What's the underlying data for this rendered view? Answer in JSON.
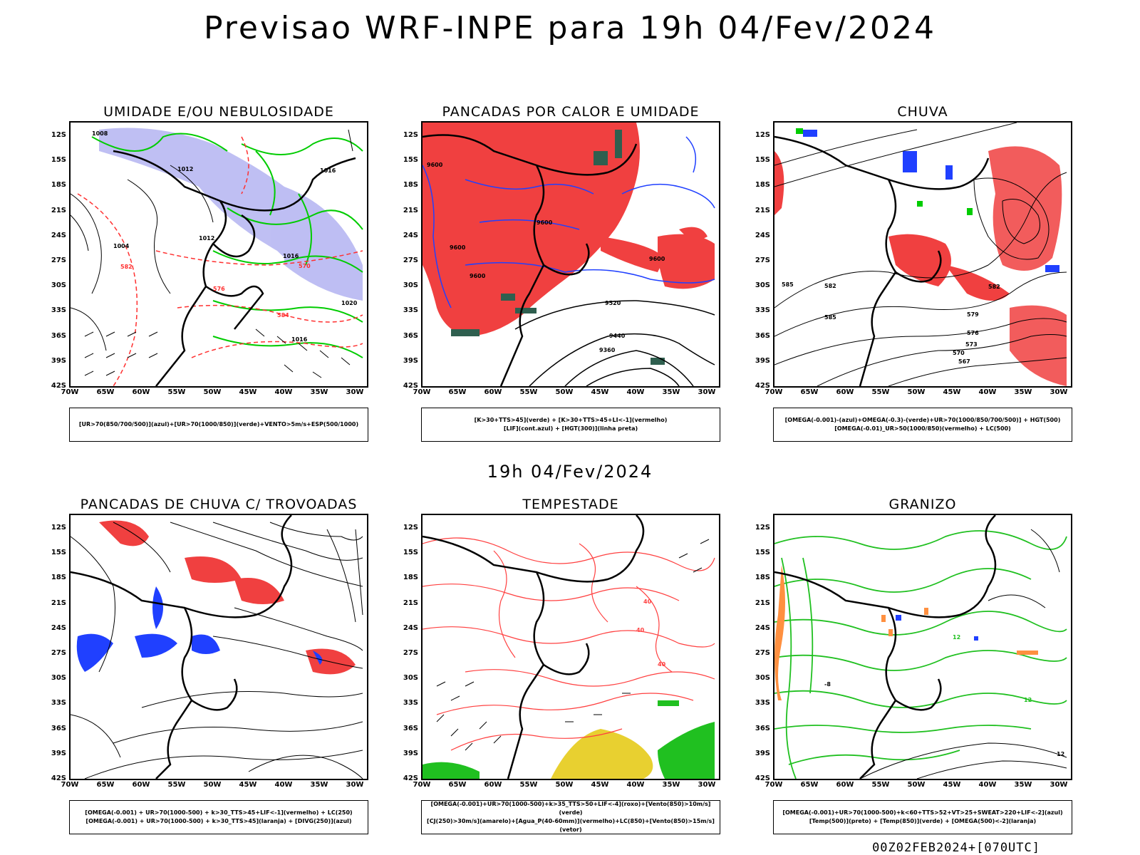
{
  "main_title": "Previsao WRF-INPE  para 19h 04/Fev/2024",
  "mid_title": "19h 04/Fev/2024",
  "footer": "00Z02FEB2024+[070UTC]",
  "axes": {
    "lat_labels": [
      "12S",
      "15S",
      "18S",
      "21S",
      "24S",
      "27S",
      "30S",
      "33S",
      "36S",
      "39S",
      "42S"
    ],
    "lon_labels": [
      "70W",
      "65W",
      "60W",
      "55W",
      "50W",
      "45W",
      "40W",
      "35W",
      "30W"
    ]
  },
  "panels": [
    {
      "id": "umidade",
      "title": "UMIDADE E/OU NEBULOSIDADE",
      "legend": [
        "[UR>70(850/700/500)](azul)+[UR>70(1000/850)](verde)+VENTO>5m/s+ESP(500/1000)"
      ],
      "contour_labels": [
        "1008",
        "1012",
        "1016",
        "1004",
        "1012",
        "1016",
        "1020",
        "576",
        "570",
        "582",
        "584",
        "1016"
      ],
      "colors": {
        "fill_primary": "#b0b0f0",
        "line_a": "#00cc00",
        "line_b": "#ff3030",
        "line_c": "#000000"
      }
    },
    {
      "id": "pancadas",
      "title": "PANCADAS POR CALOR E UMIDADE",
      "legend": [
        "[K>30+TTS>45](verde) + [K>30+TTS>45+LI<-1](vermelho)",
        "[LIF](cont.azul) + [HGT(300)](linha preta)"
      ],
      "contour_labels": [
        "9600",
        "9600",
        "9600",
        "9600",
        "9520",
        "9440",
        "9360",
        "9600"
      ],
      "colors": {
        "fill_primary": "#ff4040",
        "line_a": "#2040ff",
        "line_b": "#2f5f4f",
        "line_c": "#000000"
      }
    },
    {
      "id": "chuva",
      "title": "CHUVA",
      "legend": [
        "[OMEGA(-0.001)-(azul)+OMEGA(-0.3)-(verde)+UR>70(1000/850/700/500)] + HGT(500)",
        "[OMEGA(-0.01)_UR>50(1000/850)(vermelho) + LC(500)"
      ],
      "contour_labels": [
        "585",
        "582",
        "579",
        "576",
        "573",
        "570",
        "567",
        "585",
        "582"
      ],
      "colors": {
        "fill_primary": "#ff4040",
        "line_a": "#2040ff",
        "line_b": "#00cc00",
        "line_c": "#000000"
      }
    },
    {
      "id": "trovoadas",
      "title": "PANCADAS DE CHUVA C/ TROVOADAS",
      "legend": [
        "[OMEGA(-0.001) + UR>70(1000-500) + k>30_TTS>45+LIF<-1](vermelho) + LC(250)",
        "[OMEGA(-0.001) + UR>70(1000-500) + k>30_TTS>45](laranja) + [DIVG(250)](azul)"
      ],
      "contour_labels": [],
      "colors": {
        "fill_primary": "#ff4040",
        "line_a": "#2040ff",
        "line_b": "#ff8020",
        "line_c": "#000000"
      }
    },
    {
      "id": "tempestade",
      "title": "TEMPESTADE",
      "legend": [
        "[OMEGA(-0.001)+UR>70(1000-500)+k>35_TTS>50+LIF<-4](roxo)+[Vento(850)>10m/s](verde)",
        "[CJ(250)>30m/s](amarelo)+[Agua_P(40-60mm)](vermelho)+LC(850)+[Vento(850)>15m/s](vetor)"
      ],
      "contour_labels": [
        "40",
        "40",
        "40"
      ],
      "colors": {
        "fill_primary": "#e8d030",
        "line_a": "#ff4040",
        "line_b": "#20c020",
        "line_c": "#000000"
      }
    },
    {
      "id": "granizo",
      "title": "GRANIZO",
      "legend": [
        "[OMEGA(-0.001)+UR>70(1000-500)+k<60+TTS>52+VT>25+SWEAT>220+LIF<-2](azul)",
        "[Temp(500)](preto) + [Temp(850)](verde) + [OMEGA(500)<-2](laranja)"
      ],
      "contour_labels": [
        "12",
        "12",
        "-8",
        "12"
      ],
      "colors": {
        "fill_primary": "#ff9040",
        "line_a": "#20c020",
        "line_b": "#2040ff",
        "line_c": "#000000"
      }
    }
  ]
}
